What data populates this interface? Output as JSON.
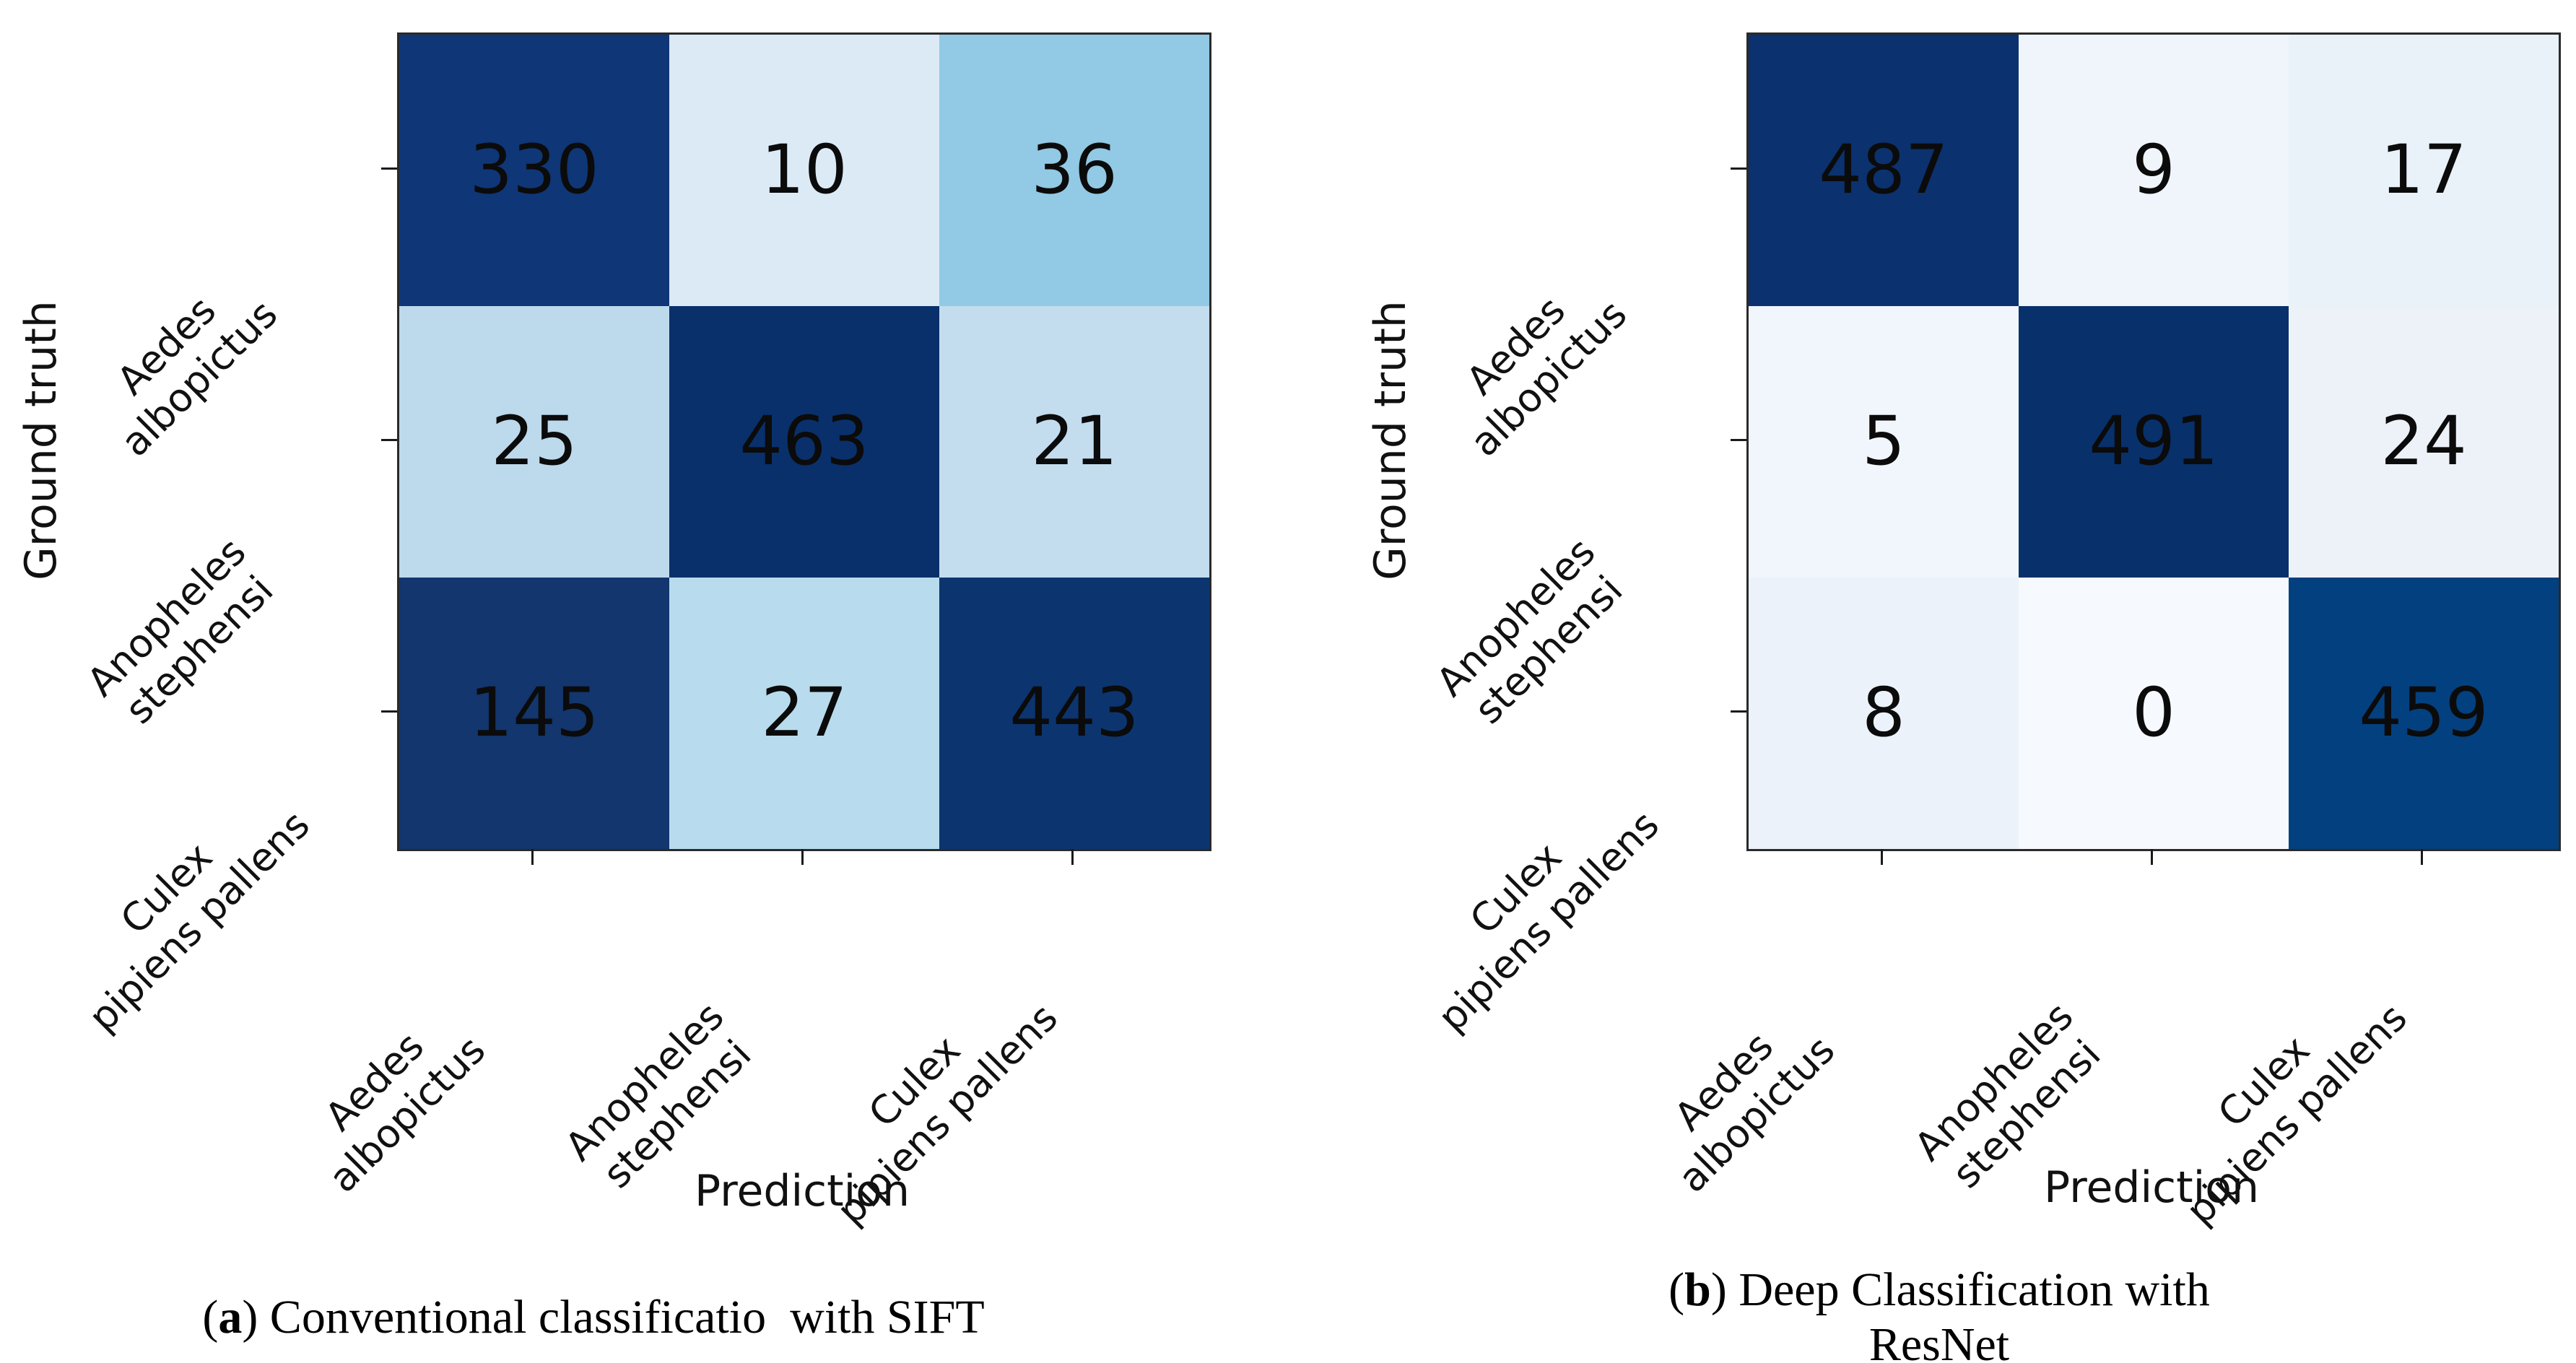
{
  "chart_data": [
    {
      "type": "heatmap",
      "panel": "a",
      "title": "(a) Conventional classificatio  with SIFT",
      "xlabel": "Prediction",
      "ylabel": "Ground truth",
      "categories": [
        "Aedes albopictus",
        "Anopheles stephensi",
        "Culex pipiens pallens"
      ],
      "matrix": [
        [
          330,
          10,
          36
        ],
        [
          25,
          463,
          21
        ],
        [
          145,
          27,
          443
        ]
      ],
      "colormap": "Blues",
      "grid": false,
      "legend": "none"
    },
    {
      "type": "heatmap",
      "panel": "b",
      "title": "(b) Deep Classification with ResNet",
      "xlabel": "Prediction",
      "ylabel": "Ground truth",
      "categories": [
        "Aedes albopictus",
        "Anopheles stephensi",
        "Culex pipiens pallens"
      ],
      "matrix": [
        [
          487,
          9,
          17
        ],
        [
          5,
          491,
          24
        ],
        [
          8,
          0,
          459
        ]
      ],
      "colormap": "Blues",
      "grid": false,
      "legend": "none"
    }
  ],
  "panels": [
    {
      "id": "a",
      "caption": {
        "open": "(",
        "letter": "a",
        "close": ")",
        "text": " Conventional classificatio  with SIFT"
      },
      "x_axis_label": "Prediction",
      "y_axis_label": "Ground truth",
      "row_labels": [
        [
          "Aedes",
          "albopictus"
        ],
        [
          "Anopheles",
          "stephensi"
        ],
        [
          "Culex",
          "pipiens pallens"
        ]
      ],
      "col_labels": [
        [
          "Aedes",
          "albopictus"
        ],
        [
          "Anopheles",
          "stephensi"
        ],
        [
          "Culex",
          "pipiens pallens"
        ]
      ],
      "values": [
        [
          330,
          10,
          36
        ],
        [
          25,
          463,
          21
        ],
        [
          145,
          27,
          443
        ]
      ],
      "cell_colors": [
        [
          "#0f3676",
          "#dceaf6",
          "#92c9e4"
        ],
        [
          "#bdd9ec",
          "#09306b",
          "#c3ddef"
        ],
        [
          "#12366d",
          "#b8dcee",
          "#0c356f"
        ]
      ]
    },
    {
      "id": "b",
      "caption": {
        "open": "(",
        "letter": "b",
        "close": ")",
        "text": " Deep Classification with ResNet"
      },
      "x_axis_label": "Prediction",
      "y_axis_label": "Ground truth",
      "row_labels": [
        [
          "Aedes",
          "albopictus"
        ],
        [
          "Anopheles",
          "stephensi"
        ],
        [
          "Culex",
          "pipiens pallens"
        ]
      ],
      "col_labels": [
        [
          "Aedes",
          "albopictus"
        ],
        [
          "Anopheles",
          "stephensi"
        ],
        [
          "Culex",
          "pipiens pallens"
        ]
      ],
      "values": [
        [
          487,
          9,
          17
        ],
        [
          5,
          491,
          24
        ],
        [
          8,
          0,
          459
        ]
      ],
      "cell_colors": [
        [
          "#0b316e",
          "#eff5fb",
          "#e9f1f9"
        ],
        [
          "#f1f6fc",
          "#08306b",
          "#edf2f9"
        ],
        [
          "#ebf2fa",
          "#f6f9fd",
          "#03407f"
        ]
      ]
    }
  ],
  "style_colors": {
    "background": "#ffffff",
    "axis_spine": "#2a2a2a",
    "text": "#111111",
    "darkest_cell": "#08306b",
    "lightest_cell": "#f7fbff"
  }
}
